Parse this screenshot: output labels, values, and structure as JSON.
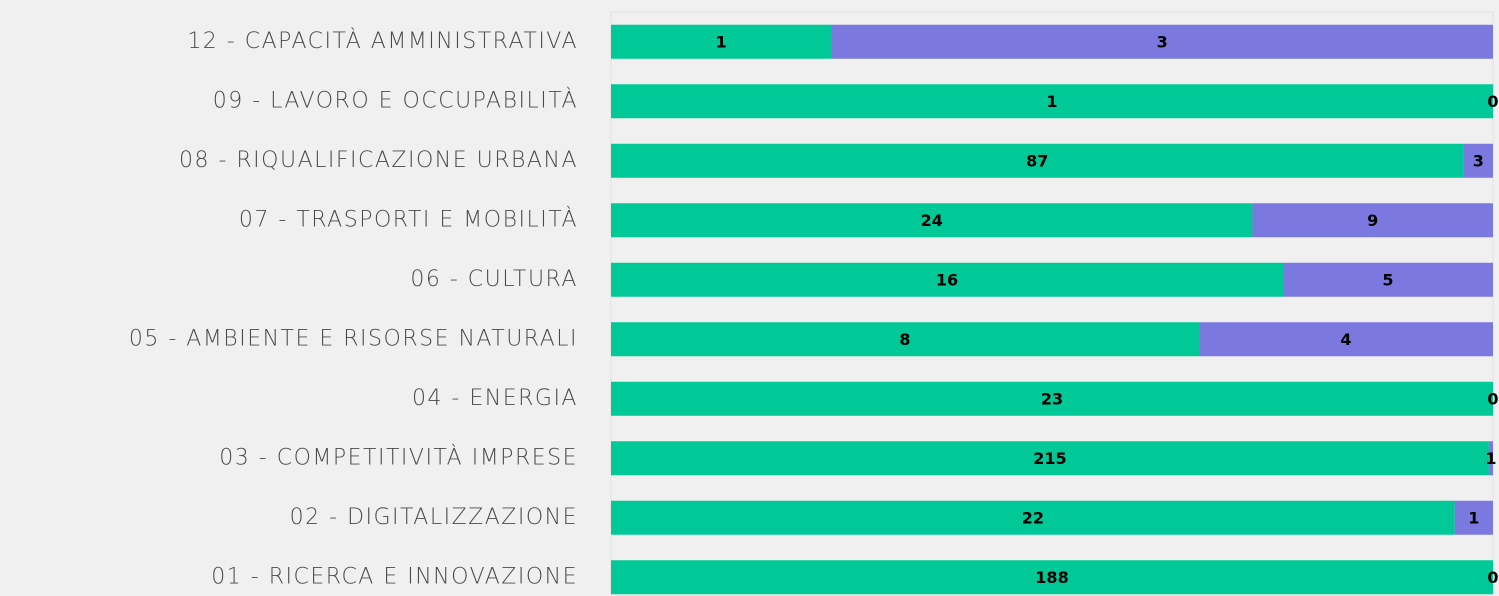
{
  "chart_data": {
    "type": "bar",
    "orientation": "horizontal",
    "stacked": "percent",
    "categories": [
      "12 - CAPACITÀ AMMINISTRATIVA",
      "09 - LAVORO E OCCUPABILITÀ",
      "08 - RIQUALIFICAZIONE URBANA",
      "07 - TRASPORTI E MOBILITÀ",
      "06 - CULTURA",
      "05 - AMBIENTE E RISORSE NATURALI",
      "04 - ENERGIA",
      "03 - COMPETITIVITÀ IMPRESE",
      "02 - DIGITALIZZAZIONE",
      "01 - RICERCA E INNOVAZIONE"
    ],
    "series": [
      {
        "color": "#00c896",
        "values": [
          1,
          1,
          87,
          24,
          16,
          8,
          23,
          215,
          22,
          188
        ]
      },
      {
        "color": "#7b79e0",
        "values": [
          3,
          0,
          3,
          9,
          5,
          4,
          0,
          1,
          1,
          0
        ]
      }
    ]
  }
}
